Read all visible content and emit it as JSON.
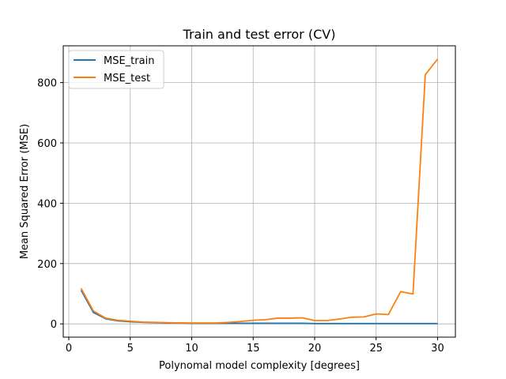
{
  "chart_data": {
    "type": "line",
    "title": "Train and test error (CV)",
    "xlabel": "Polynomal model complexity [degrees]",
    "ylabel": "Mean Squared Error (MSE)",
    "xlim": [
      -0.45,
      31.45
    ],
    "ylim": [
      -44,
      922
    ],
    "xticks": [
      0,
      5,
      10,
      15,
      20,
      25,
      30
    ],
    "yticks": [
      0,
      200,
      400,
      600,
      800
    ],
    "grid": true,
    "legend_position": "upper-left",
    "x": [
      1,
      2,
      3,
      4,
      5,
      6,
      7,
      8,
      9,
      10,
      11,
      12,
      13,
      14,
      15,
      16,
      17,
      18,
      19,
      20,
      21,
      22,
      23,
      24,
      25,
      26,
      27,
      28,
      29,
      30
    ],
    "series": [
      {
        "name": "MSE_train",
        "color": "#1f77b4",
        "values": [
          112,
          38,
          17,
          10,
          7,
          5,
          4,
          3,
          3,
          2,
          2,
          2,
          2,
          2,
          2,
          2,
          2,
          2,
          2,
          1,
          1,
          1,
          1,
          1,
          1,
          1,
          1,
          1,
          1,
          1
        ]
      },
      {
        "name": "MSE_test",
        "color": "#ff7f0e",
        "values": [
          118,
          43,
          19,
          12,
          9,
          6,
          5,
          4,
          3,
          3,
          3,
          3,
          5,
          8,
          12,
          14,
          19,
          19,
          20,
          11,
          11,
          16,
          22,
          23,
          33,
          31,
          107,
          99,
          826,
          878
        ]
      }
    ]
  }
}
